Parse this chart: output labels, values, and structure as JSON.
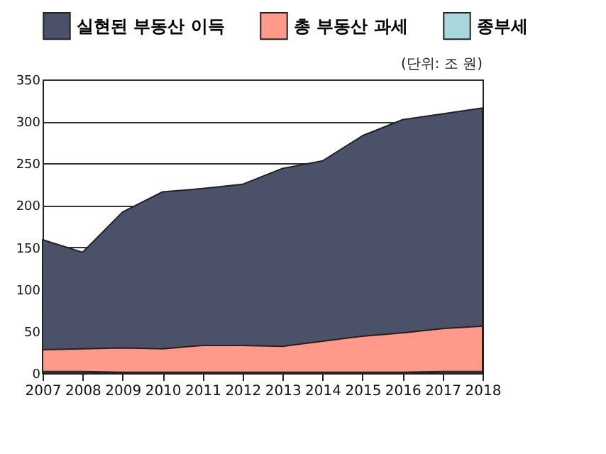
{
  "chart_data": {
    "type": "area",
    "categories": [
      "2007",
      "2008",
      "2009",
      "2010",
      "2011",
      "2012",
      "2013",
      "2014",
      "2015",
      "2016",
      "2017",
      "2018"
    ],
    "series": [
      {
        "name": "실현된 부동산 이득",
        "color": "#4a5169",
        "values": [
          159,
          144,
          192,
          216,
          220,
          225,
          244,
          253,
          283,
          302,
          309,
          316
        ]
      },
      {
        "name": "총 부동산 과세",
        "color": "#ff9a8a",
        "values": [
          28,
          29,
          30,
          29,
          33,
          33,
          32,
          38,
          44,
          48,
          53,
          56
        ]
      },
      {
        "name": "종부세",
        "color": "#a8d8dc",
        "values": [
          2,
          2,
          1,
          1,
          1,
          1,
          1,
          1,
          1,
          1,
          2,
          2
        ]
      }
    ],
    "ylim": [
      0,
      350
    ],
    "yticks": [
      0,
      50,
      100,
      150,
      200,
      250,
      300,
      350
    ],
    "grid": "y",
    "legend": "top",
    "annotations": [
      "(단위: 조 원)"
    ]
  }
}
